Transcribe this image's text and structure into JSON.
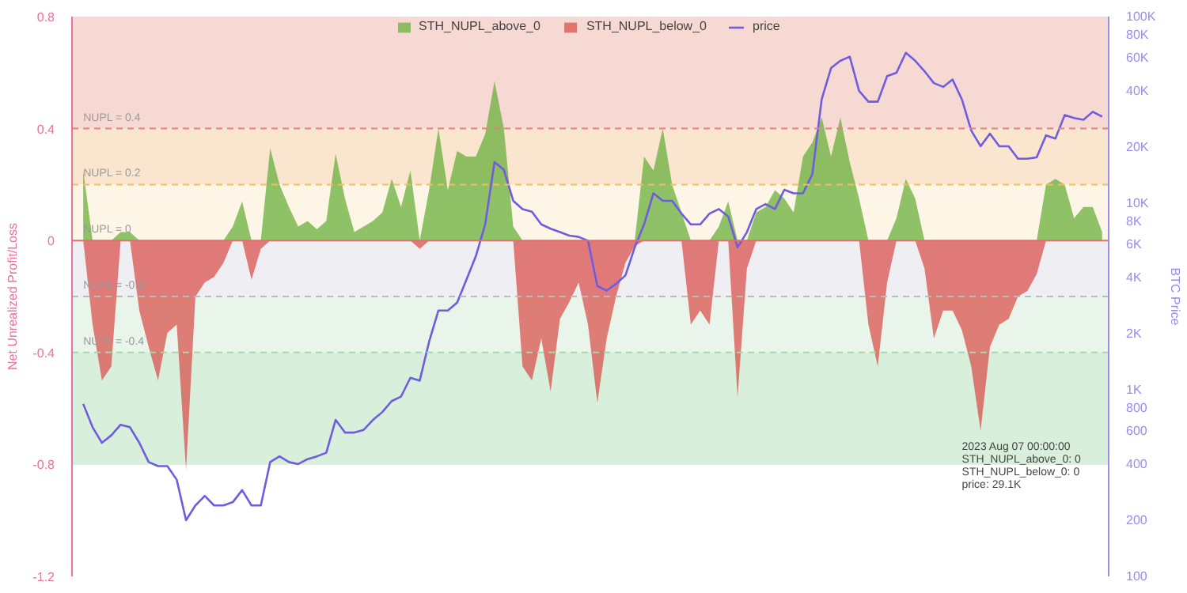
{
  "chart_data": {
    "type": "area",
    "ylabel": "Net Unrealized Profit/Loss",
    "y2label": "BTC Price",
    "categories": [
      null,
      null,
      null,
      null,
      null,
      null,
      null,
      null,
      null,
      null,
      null,
      null,
      null,
      null,
      null,
      null,
      null,
      null,
      null,
      null,
      null,
      null,
      null,
      null,
      null,
      null,
      null,
      null,
      null,
      null,
      null,
      null,
      null,
      null,
      null,
      null,
      null,
      null,
      null,
      null,
      null,
      null,
      null,
      null,
      null,
      null,
      null,
      null,
      null,
      null,
      null,
      null,
      null,
      null,
      null,
      null,
      null,
      null,
      null,
      null,
      null,
      null,
      null,
      null,
      null,
      null,
      null,
      null,
      null,
      null,
      null,
      null,
      null,
      null,
      null,
      null,
      null,
      null,
      null,
      null,
      null,
      null,
      null,
      null,
      null,
      null,
      null,
      null,
      null,
      null,
      null,
      null,
      null,
      null,
      null,
      null,
      null,
      null,
      null,
      null,
      null,
      null,
      null,
      null,
      null,
      null,
      null,
      null,
      null,
      null
    ],
    "series": [
      {
        "name": "STH_NUPL_above_0",
        "color": "#6aaf3c",
        "values": [
          0.25,
          0,
          0,
          0,
          0.03,
          0.03,
          0,
          0,
          0,
          0,
          0,
          0,
          0,
          0,
          0,
          0,
          0.05,
          0.14,
          0,
          0,
          0.33,
          0.2,
          0.12,
          0.05,
          0.07,
          0.04,
          0.07,
          0.31,
          0.15,
          0.03,
          0.05,
          0.07,
          0.1,
          0.22,
          0.12,
          0.25,
          0,
          0.18,
          0.4,
          0.18,
          0.32,
          0.3,
          0.3,
          0.38,
          0.57,
          0.4,
          0.05,
          0,
          0,
          0,
          0,
          0,
          0,
          0,
          0,
          0,
          0,
          0,
          0,
          0,
          0.3,
          0.25,
          0.4,
          0.2,
          0.1,
          0,
          0,
          0,
          0.05,
          0.14,
          0,
          0,
          0.1,
          0.12,
          0.18,
          0.15,
          0.1,
          0.3,
          0.35,
          0.44,
          0.3,
          0.44,
          0.28,
          0.15,
          0,
          0,
          0,
          0.08,
          0.22,
          0.15,
          0,
          0,
          0,
          0,
          0,
          0,
          0,
          0,
          0,
          0,
          0,
          0,
          0,
          0.2,
          0.22,
          0.2,
          0.08,
          0.12,
          0.12,
          0.03
        ]
      },
      {
        "name": "STH_NUPL_below_0",
        "color": "#d9534f",
        "values": [
          0,
          -0.3,
          -0.5,
          -0.45,
          0,
          0,
          -0.25,
          -0.38,
          -0.5,
          -0.33,
          -0.3,
          -0.82,
          -0.2,
          -0.15,
          -0.13,
          -0.08,
          0,
          0,
          -0.14,
          -0.03,
          0,
          0,
          0,
          0,
          0,
          0,
          0,
          0,
          0,
          0,
          0,
          0,
          0,
          0,
          0,
          0,
          -0.03,
          0,
          0,
          0,
          0,
          0,
          0,
          0,
          0,
          0,
          0,
          -0.45,
          -0.5,
          -0.35,
          -0.54,
          -0.28,
          -0.22,
          -0.15,
          -0.3,
          -0.58,
          -0.35,
          -0.2,
          -0.08,
          -0.02,
          0,
          0,
          0,
          0,
          0,
          -0.3,
          -0.25,
          -0.3,
          0,
          0,
          -0.56,
          -0.1,
          0,
          0,
          0,
          0,
          0,
          0,
          0,
          0,
          0,
          0,
          0,
          0,
          -0.3,
          -0.45,
          -0.15,
          0,
          0,
          0,
          -0.1,
          -0.35,
          -0.25,
          -0.25,
          -0.32,
          -0.45,
          -0.68,
          -0.38,
          -0.3,
          -0.28,
          -0.2,
          -0.18,
          -0.12,
          0,
          0,
          0,
          0,
          0,
          0,
          0
        ]
      },
      {
        "name": "price",
        "type": "line",
        "axis": "y2",
        "color": "#6f5ce0",
        "values": [
          840,
          630,
          520,
          570,
          650,
          630,
          520,
          410,
          390,
          390,
          330,
          200,
          240,
          270,
          240,
          240,
          250,
          290,
          240,
          240,
          410,
          440,
          410,
          400,
          425,
          440,
          460,
          690,
          590,
          590,
          610,
          690,
          760,
          870,
          920,
          1160,
          1120,
          1810,
          2660,
          2660,
          2930,
          3900,
          5200,
          7700,
          16600,
          15100,
          10300,
          9300,
          9000,
          7700,
          7300,
          7000,
          6700,
          6600,
          6300,
          3600,
          3400,
          3700,
          4100,
          5800,
          7700,
          11300,
          10300,
          10300,
          8800,
          7700,
          7700,
          8800,
          9300,
          8500,
          5800,
          7000,
          9300,
          9900,
          9300,
          11800,
          11300,
          11300,
          14300,
          36000,
          53000,
          58000,
          61000,
          40000,
          35000,
          35000,
          48000,
          50000,
          64000,
          58000,
          51000,
          44000,
          42000,
          46000,
          36000,
          24500,
          20200,
          23600,
          20200,
          20200,
          17300,
          17300,
          17600,
          23100,
          22200,
          29700,
          28600,
          28000,
          30900,
          29100
        ]
      }
    ],
    "ylim": [
      -1.2,
      0.8
    ],
    "yticks": [
      -1.2,
      -0.8,
      -0.4,
      0,
      0.4,
      0.8
    ],
    "y2lim": [
      100,
      100000
    ],
    "y2ticks": [
      100,
      200,
      400,
      600,
      800,
      {
        "value": 1000,
        "label": "1K"
      },
      {
        "value": 2000,
        "label": "2K"
      },
      {
        "value": 4000,
        "label": "4K"
      },
      {
        "value": 6000,
        "label": "6K"
      },
      {
        "value": 8000,
        "label": "8K"
      },
      {
        "value": 10000,
        "label": "10K"
      },
      {
        "value": 20000,
        "label": "20K"
      },
      {
        "value": 40000,
        "label": "40K"
      },
      {
        "value": 60000,
        "label": "60K"
      },
      {
        "value": 80000,
        "label": "80K"
      },
      {
        "value": 100000,
        "label": "100K"
      }
    ],
    "log": "y2",
    "grid": "y",
    "legend": "top",
    "tick_labels": "y",
    "bands": [
      {
        "axis": "y",
        "from": 0.4,
        "to": 0.8,
        "color": "#f7d9d3"
      },
      {
        "axis": "y",
        "from": 0.2,
        "to": 0.4,
        "color": "#fae5cf"
      },
      {
        "axis": "y",
        "from": 0,
        "to": 0.2,
        "color": "#fdf5e6"
      },
      {
        "axis": "y",
        "from": -0.2,
        "to": 0,
        "color": "#efeff3"
      },
      {
        "axis": "y",
        "from": -0.4,
        "to": -0.2,
        "color": "#e9f5ea"
      },
      {
        "axis": "y",
        "from": -0.8,
        "to": -0.4,
        "color": "#d8efdb"
      }
    ],
    "ref_lines": [
      {
        "axis": "y",
        "value": 0.4,
        "label": "NUPL = 0.4",
        "color": "#e88080",
        "line_style": "dashed"
      },
      {
        "axis": "y",
        "value": 0.2,
        "label": "NUPL = 0.2",
        "color": "#f0c060",
        "line_style": "dashed"
      },
      {
        "axis": "y",
        "value": 0,
        "label": "NUPL = 0",
        "color": "#e07070",
        "line_style": "solid"
      },
      {
        "axis": "y",
        "value": -0.2,
        "label": "NUPL = -0.2",
        "color": "#bbbbbb",
        "line_style": "dashed"
      },
      {
        "axis": "y",
        "value": -0.4,
        "label": "NUPL = -0.4",
        "color": "#a8d8a8",
        "line_style": "dashed"
      }
    ],
    "annotations": [
      "2023 Aug 07 00:00:00",
      "STH_NUPL_above_0: 0",
      "STH_NUPL_below_0: 0",
      "price: 29.1K"
    ]
  }
}
